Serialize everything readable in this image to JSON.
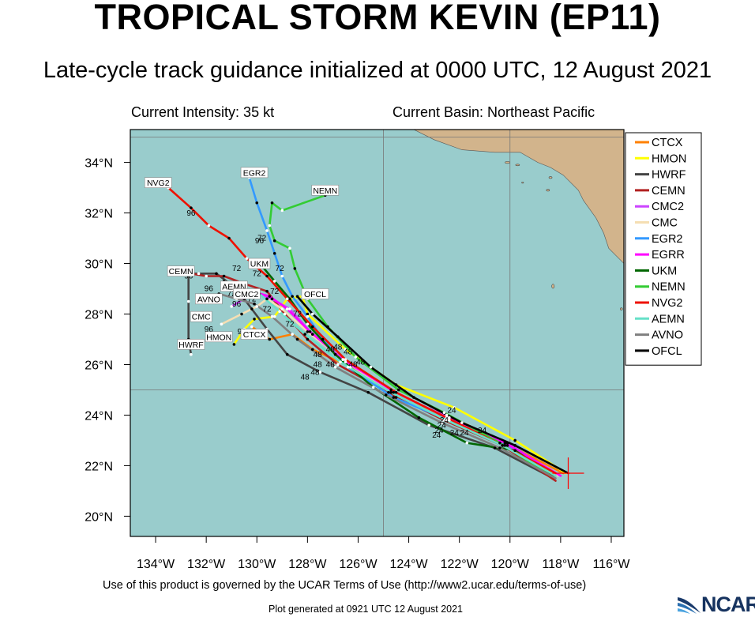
{
  "title": "TROPICAL STORM KEVIN (EP11)",
  "subtitle": "Late-cycle track guidance initialized at 0000 UTC, 12 August 2021",
  "current_intensity": "Current Intensity: 35 kt",
  "current_basin": "Current Basin: Northeast Pacific",
  "footer_terms": "Use of this product is governed by the UCAR Terms of Use (http://www2.ucar.edu/terms-of-use)",
  "footer_generated": "Plot generated at 0921 UTC   12 August 2021",
  "logo_text": "NCAR",
  "colors": {
    "ocean": "#99cccc",
    "land": "#d2b48c",
    "storm_marker": "#ff0000",
    "grid": "#777777"
  },
  "map": {
    "lon_range": [
      -135,
      -115.5
    ],
    "lat_range": [
      19.2,
      35.3
    ],
    "lon_ticks": [
      {
        "lon": -134,
        "label": "134°W"
      },
      {
        "lon": -132,
        "label": "132°W"
      },
      {
        "lon": -130,
        "label": "130°W"
      },
      {
        "lon": -128,
        "label": "128°W"
      },
      {
        "lon": -126,
        "label": "126°W"
      },
      {
        "lon": -124,
        "label": "124°W"
      },
      {
        "lon": -122,
        "label": "122°W"
      },
      {
        "lon": -120,
        "label": "120°W"
      },
      {
        "lon": -118,
        "label": "118°W"
      },
      {
        "lon": -116,
        "label": "116°W"
      }
    ],
    "lat_ticks": [
      {
        "lat": 20,
        "label": "20°N"
      },
      {
        "lat": 22,
        "label": "22°N"
      },
      {
        "lat": 24,
        "label": "24°N"
      },
      {
        "lat": 26,
        "label": "26°N"
      },
      {
        "lat": 28,
        "label": "28°N"
      },
      {
        "lat": 30,
        "label": "30°N"
      },
      {
        "lat": 32,
        "label": "32°N"
      },
      {
        "lat": 34,
        "label": "34°N"
      }
    ],
    "grid_lons": [
      -135,
      -125,
      -120
    ],
    "grid_lats": [
      25,
      35
    ],
    "storm_center": {
      "lon": -117.7,
      "lat": 21.7
    }
  },
  "chart_data": {
    "type": "map",
    "title": "TROPICAL STORM KEVIN (EP11)",
    "tracks": [
      {
        "name": "CTCX",
        "color": "#ff8000",
        "points": [
          [
            -117.9,
            21.7
          ],
          [
            -120.2,
            22.9
          ],
          [
            -122.5,
            24.0
          ],
          [
            -124.5,
            24.7
          ],
          [
            -126.3,
            25.9
          ],
          [
            -127.8,
            26.6
          ],
          [
            -128.6,
            27.2
          ],
          [
            -129.5,
            27.0
          ],
          [
            -130.2,
            27.5
          ]
        ]
      },
      {
        "name": "HMON",
        "color": "#ffff00",
        "points": [
          [
            -117.8,
            21.7
          ],
          [
            -119.8,
            23.0
          ],
          [
            -122.2,
            24.3
          ],
          [
            -124.5,
            25.2
          ],
          [
            -126.5,
            26.6
          ],
          [
            -128.0,
            28.0
          ],
          [
            -128.2,
            28.7
          ],
          [
            -128.8,
            28.6
          ],
          [
            -129.3,
            27.9
          ],
          [
            -130.1,
            27.8
          ],
          [
            -130.5,
            27.4
          ],
          [
            -130.9,
            26.8
          ]
        ]
      },
      {
        "name": "HWRF",
        "color": "#444444",
        "points": [
          [
            -118.3,
            21.5
          ],
          [
            -120.6,
            22.7
          ],
          [
            -123.2,
            23.6
          ],
          [
            -125.6,
            24.9
          ],
          [
            -127.5,
            25.7
          ],
          [
            -128.8,
            26.4
          ],
          [
            -129.6,
            27.4
          ],
          [
            -130.2,
            28.2
          ],
          [
            -130.8,
            29.0
          ],
          [
            -131.6,
            29.6
          ],
          [
            -132.3,
            29.6
          ],
          [
            -132.7,
            29.6
          ],
          [
            -132.7,
            28.5
          ],
          [
            -132.7,
            27.0
          ],
          [
            -132.6,
            26.4
          ]
        ]
      },
      {
        "name": "CEMN",
        "color": "#b22222",
        "points": [
          [
            -118.2,
            21.4
          ],
          [
            -120.3,
            22.8
          ],
          [
            -122.6,
            23.8
          ],
          [
            -124.8,
            24.9
          ],
          [
            -126.8,
            26.0
          ],
          [
            -128.0,
            27.0
          ],
          [
            -128.9,
            28.0
          ],
          [
            -129.6,
            28.9
          ],
          [
            -130.5,
            29.2
          ],
          [
            -131.3,
            29.5
          ],
          [
            -132.0,
            29.5
          ],
          [
            -132.6,
            29.6
          ],
          [
            -133.2,
            29.6
          ]
        ]
      },
      {
        "name": "CMC2",
        "color": "#cc44ff",
        "points": [
          [
            -118.1,
            21.6
          ],
          [
            -120.1,
            22.9
          ],
          [
            -122.4,
            23.9
          ],
          [
            -124.6,
            24.9
          ],
          [
            -126.5,
            26.1
          ],
          [
            -127.8,
            27.2
          ],
          [
            -128.7,
            28.2
          ],
          [
            -129.4,
            28.6
          ],
          [
            -130.0,
            28.8
          ],
          [
            -130.5,
            28.6
          ],
          [
            -131.0,
            28.3
          ]
        ]
      },
      {
        "name": "CMC",
        "color": "#f5deb3",
        "points": [
          [
            -118.1,
            21.6
          ],
          [
            -120.2,
            22.8
          ],
          [
            -122.5,
            23.8
          ],
          [
            -124.7,
            24.9
          ],
          [
            -126.6,
            26.2
          ],
          [
            -128.0,
            27.3
          ],
          [
            -129.0,
            28.2
          ],
          [
            -129.6,
            28.6
          ],
          [
            -130.0,
            28.3
          ],
          [
            -130.6,
            28.0
          ],
          [
            -131.4,
            27.6
          ]
        ]
      },
      {
        "name": "EGR2",
        "color": "#3399ff",
        "points": [
          [
            -118.0,
            21.6
          ],
          [
            -120.1,
            22.8
          ],
          [
            -122.4,
            23.8
          ],
          [
            -124.6,
            24.7
          ],
          [
            -126.4,
            25.9
          ],
          [
            -127.4,
            27.0
          ],
          [
            -128.0,
            27.9
          ],
          [
            -128.6,
            28.7
          ],
          [
            -129.0,
            29.5
          ],
          [
            -129.3,
            30.4
          ],
          [
            -129.6,
            31.3
          ],
          [
            -130.0,
            32.4
          ],
          [
            -130.3,
            33.4
          ]
        ]
      },
      {
        "name": "EGRR",
        "color": "#ff00ff",
        "points": [
          [
            -118.0,
            21.6
          ],
          [
            -120.2,
            22.9
          ],
          [
            -122.5,
            23.9
          ],
          [
            -124.7,
            25.0
          ],
          [
            -126.6,
            26.2
          ],
          [
            -127.9,
            27.3
          ],
          [
            -128.8,
            28.2
          ],
          [
            -129.5,
            28.7
          ],
          [
            -130.2,
            28.9
          ],
          [
            -130.9,
            28.8
          ]
        ]
      },
      {
        "name": "UKM",
        "color": "#006600",
        "points": [
          [
            -118.3,
            21.6
          ],
          [
            -119.8,
            22.6
          ],
          [
            -121.7,
            22.9
          ],
          [
            -123.6,
            23.9
          ],
          [
            -125.4,
            25.1
          ],
          [
            -126.9,
            26.4
          ],
          [
            -128.0,
            27.6
          ],
          [
            -128.7,
            28.6
          ],
          [
            -129.3,
            29.3
          ],
          [
            -129.8,
            29.9
          ]
        ]
      },
      {
        "name": "NEMN",
        "color": "#33cc33",
        "points": [
          [
            -118.4,
            21.6
          ],
          [
            -120.4,
            22.9
          ],
          [
            -122.6,
            24.1
          ],
          [
            -124.4,
            25.0
          ],
          [
            -126.1,
            26.3
          ],
          [
            -127.2,
            27.5
          ],
          [
            -128.0,
            28.6
          ],
          [
            -128.5,
            29.8
          ],
          [
            -128.7,
            30.6
          ],
          [
            -129.3,
            30.9
          ],
          [
            -129.5,
            31.5
          ],
          [
            -129.4,
            32.4
          ],
          [
            -129.0,
            32.1
          ],
          [
            -127.3,
            32.7
          ]
        ]
      },
      {
        "name": "NVG2",
        "color": "#ee1100",
        "points": [
          [
            -118.2,
            21.7
          ],
          [
            -120.3,
            22.8
          ],
          [
            -122.5,
            23.9
          ],
          [
            -124.5,
            24.9
          ],
          [
            -126.5,
            26.2
          ],
          [
            -127.8,
            27.5
          ],
          [
            -128.8,
            28.6
          ],
          [
            -129.6,
            29.5
          ],
          [
            -130.4,
            30.2
          ],
          [
            -131.1,
            31.0
          ],
          [
            -131.9,
            31.5
          ],
          [
            -132.6,
            32.2
          ],
          [
            -133.5,
            33.0
          ]
        ]
      },
      {
        "name": "AEMN",
        "color": "#66e0c8",
        "points": [
          [
            -118.2,
            21.6
          ],
          [
            -120.3,
            22.8
          ],
          [
            -122.5,
            23.8
          ],
          [
            -124.7,
            24.9
          ],
          [
            -126.7,
            26.1
          ],
          [
            -128.1,
            27.2
          ],
          [
            -129.1,
            28.1
          ],
          [
            -129.9,
            28.8
          ],
          [
            -130.7,
            29.1
          ],
          [
            -131.3,
            29.3
          ]
        ]
      },
      {
        "name": "AVNO",
        "color": "#808080",
        "points": [
          [
            -118.2,
            21.5
          ],
          [
            -120.4,
            22.7
          ],
          [
            -122.7,
            23.7
          ],
          [
            -124.9,
            24.8
          ],
          [
            -126.9,
            25.9
          ],
          [
            -128.4,
            27.0
          ],
          [
            -129.4,
            27.9
          ],
          [
            -130.1,
            28.4
          ],
          [
            -130.8,
            28.6
          ],
          [
            -131.5,
            28.8
          ]
        ]
      },
      {
        "name": "OFCL",
        "color": "#000000",
        "points": [
          [
            -117.7,
            21.7
          ],
          [
            -119.8,
            22.8
          ],
          [
            -121.9,
            23.7
          ],
          [
            -123.8,
            24.7
          ],
          [
            -125.5,
            25.9
          ],
          [
            -126.8,
            27.1
          ],
          [
            -127.8,
            28.0
          ],
          [
            -128.4,
            28.7
          ]
        ]
      }
    ],
    "end_labels": [
      {
        "text": "NVG2",
        "lon": -133.9,
        "lat": 33.2
      },
      {
        "text": "EGR2",
        "lon": -130.1,
        "lat": 33.6
      },
      {
        "text": "NEMN",
        "lon": -127.3,
        "lat": 32.9
      },
      {
        "text": "UKM",
        "lon": -129.9,
        "lat": 30.0
      },
      {
        "text": "CEMN",
        "lon": -133.0,
        "lat": 29.7
      },
      {
        "text": "AEMN",
        "lon": -130.9,
        "lat": 29.1
      },
      {
        "text": "OFCL",
        "lon": -127.7,
        "lat": 28.8
      },
      {
        "text": "CMC2",
        "lon": -130.4,
        "lat": 28.8
      },
      {
        "text": "AVNO",
        "lon": -131.9,
        "lat": 28.6
      },
      {
        "text": "CMC",
        "lon": -132.2,
        "lat": 27.9
      },
      {
        "text": "CTCX",
        "lon": -130.1,
        "lat": 27.2
      },
      {
        "text": "HMON",
        "lon": -131.5,
        "lat": 27.1
      },
      {
        "text": "HWRF",
        "lon": -132.6,
        "lat": 26.8
      }
    ],
    "hour_labels": [
      {
        "text": "96",
        "lon": -132.6,
        "lat": 31.9
      },
      {
        "text": "96",
        "lon": -129.9,
        "lat": 30.8
      },
      {
        "text": "72",
        "lon": -129.8,
        "lat": 30.9
      },
      {
        "text": "72",
        "lon": -130.8,
        "lat": 29.7
      },
      {
        "text": "72",
        "lon": -129.1,
        "lat": 29.7
      },
      {
        "text": "72",
        "lon": -130.0,
        "lat": 29.5
      },
      {
        "text": "96",
        "lon": -133.3,
        "lat": 29.5
      },
      {
        "text": "96",
        "lon": -132.7,
        "lat": 29.4
      },
      {
        "text": "96",
        "lon": -131.9,
        "lat": 28.9
      },
      {
        "text": "72",
        "lon": -131.0,
        "lat": 28.7
      },
      {
        "text": "72",
        "lon": -129.3,
        "lat": 28.8
      },
      {
        "text": "72",
        "lon": -130.2,
        "lat": 28.5
      },
      {
        "text": "96",
        "lon": -130.8,
        "lat": 28.3
      },
      {
        "text": "72",
        "lon": -129.6,
        "lat": 28.1
      },
      {
        "text": "72",
        "lon": -128.4,
        "lat": 27.9
      },
      {
        "text": "72",
        "lon": -128.7,
        "lat": 27.5
      },
      {
        "text": "96",
        "lon": -131.9,
        "lat": 27.3
      },
      {
        "text": "96",
        "lon": -130.6,
        "lat": 27.2
      },
      {
        "text": "48",
        "lon": -126.8,
        "lat": 26.6
      },
      {
        "text": "48",
        "lon": -127.1,
        "lat": 26.5
      },
      {
        "text": "48",
        "lon": -126.4,
        "lat": 26.4
      },
      {
        "text": "48",
        "lon": -127.6,
        "lat": 26.3
      },
      {
        "text": "48",
        "lon": -127.6,
        "lat": 25.9
      },
      {
        "text": "48",
        "lon": -127.1,
        "lat": 25.9
      },
      {
        "text": "48",
        "lon": -126.2,
        "lat": 25.9
      },
      {
        "text": "48",
        "lon": -125.9,
        "lat": 26.0
      },
      {
        "text": "48",
        "lon": -127.7,
        "lat": 25.6
      },
      {
        "text": "48",
        "lon": -128.1,
        "lat": 25.4
      },
      {
        "text": "24",
        "lon": -122.3,
        "lat": 24.1
      },
      {
        "text": "24",
        "lon": -122.6,
        "lat": 23.7
      },
      {
        "text": "24",
        "lon": -122.7,
        "lat": 23.5
      },
      {
        "text": "24",
        "lon": -121.1,
        "lat": 23.3
      },
      {
        "text": "24",
        "lon": -122.8,
        "lat": 23.3
      },
      {
        "text": "24",
        "lon": -122.2,
        "lat": 23.2
      },
      {
        "text": "24",
        "lon": -121.8,
        "lat": 23.2
      },
      {
        "text": "24",
        "lon": -122.9,
        "lat": 23.1
      }
    ]
  }
}
